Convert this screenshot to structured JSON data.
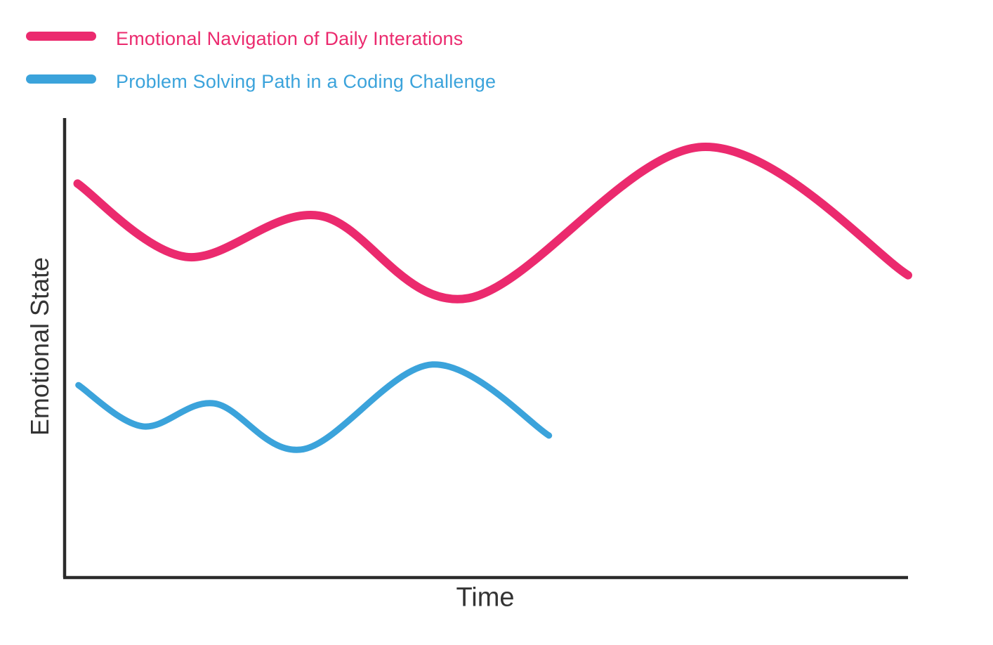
{
  "legend": {
    "items": [
      {
        "label": "Emotional Navigation of Daily Interations",
        "color": "#EB2A6E"
      },
      {
        "label": "Problem Solving Path in a Coding Challenge",
        "color": "#3BA3DB"
      }
    ]
  },
  "axes": {
    "y_label": "Emotional State",
    "x_label": "Time",
    "axis_color": "#2B2B2B",
    "label_color": "#333333"
  },
  "chart_data": {
    "type": "line",
    "title": "",
    "xlabel": "Time",
    "ylabel": "Emotional State",
    "grid": false,
    "legend_position": "top-left",
    "x_axis": {
      "range": [
        0,
        100
      ],
      "ticks": "none",
      "unit": "qualitative time (unlabeled)"
    },
    "y_axis": {
      "range": [
        0,
        100
      ],
      "ticks": "none",
      "unit": "qualitative emotional state (unlabeled)"
    },
    "series": [
      {
        "name": "Emotional Navigation of Daily Interations",
        "color": "#EB2A6E",
        "stroke_width": 12,
        "points": [
          {
            "x": 1.7,
            "y": 86
          },
          {
            "x": 14.5,
            "y": 70
          },
          {
            "x": 30.3,
            "y": 79
          },
          {
            "x": 48.0,
            "y": 61
          },
          {
            "x": 75.6,
            "y": 94
          },
          {
            "x": 100.0,
            "y": 66
          }
        ]
      },
      {
        "name": "Problem Solving Path in a Coding Challenge",
        "color": "#3BA3DB",
        "stroke_width": 9,
        "points": [
          {
            "x": 1.8,
            "y": 42
          },
          {
            "x": 9.4,
            "y": 33
          },
          {
            "x": 17.9,
            "y": 38
          },
          {
            "x": 28.4,
            "y": 28
          },
          {
            "x": 43.7,
            "y": 46.5
          },
          {
            "x": 57.5,
            "y": 31
          }
        ]
      }
    ]
  }
}
